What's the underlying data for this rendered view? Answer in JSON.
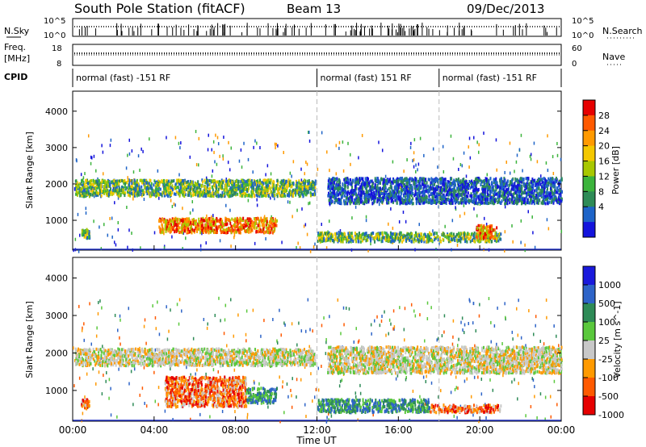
{
  "header": {
    "station": "South Pole Station (fitACF)",
    "beam": "Beam 13",
    "date": "09/Dec/2013"
  },
  "strip_labels": {
    "nsky": "N.Sky",
    "nsearch": "N.Search",
    "freq": "Freq.",
    "freq_unit": "[MHz]",
    "nave": "Nave",
    "cpid": "CPID",
    "nsky_ticks": [
      "10^5",
      "10^0"
    ],
    "nsearch_ticks": [
      "10^5",
      "10^0"
    ],
    "freq_ticks": [
      "18",
      "8"
    ],
    "nave_ticks": [
      "60",
      "0"
    ]
  },
  "cpid_segments": [
    {
      "label": "normal (fast) -151 RF",
      "start_hour": 0,
      "end_hour": 12
    },
    {
      "label": "normal (fast) 151 RF",
      "start_hour": 12,
      "end_hour": 18
    },
    {
      "label": "normal (fast) -151 RF",
      "start_hour": 18,
      "end_hour": 24
    }
  ],
  "chart_data": [
    {
      "type": "heatmap",
      "name": "power",
      "ylabel": "Slant Range [km]",
      "ylim": [
        180,
        4550
      ],
      "y_ticks": [
        1000,
        2000,
        3000,
        4000
      ],
      "x_range_hours": [
        0,
        24
      ],
      "colorbar": {
        "label": "Power [dB]",
        "ticks": [
          "28",
          "24",
          "20",
          "16",
          "12",
          "8",
          "4"
        ],
        "colors": [
          "#e60000",
          "#ff5a00",
          "#ff9a00",
          "#f4c800",
          "#a8c800",
          "#3cb43c",
          "#2e8b57",
          "#1e64c8",
          "#1414dc"
        ]
      },
      "regions": [
        {
          "from_hour": 0.1,
          "to_hour": 11.9,
          "range_km": [
            1700,
            2150
          ],
          "level": "moderate"
        },
        {
          "from_hour": 4.2,
          "to_hour": 10.0,
          "range_km": [
            700,
            1100
          ],
          "level": "strong"
        },
        {
          "from_hour": 0.4,
          "to_hour": 0.8,
          "range_km": [
            550,
            800
          ],
          "level": "moderate"
        },
        {
          "from_hour": 12.0,
          "to_hour": 21.0,
          "range_km": [
            450,
            700
          ],
          "level": "moderate"
        },
        {
          "from_hour": 19.8,
          "to_hour": 20.8,
          "range_km": [
            550,
            900
          ],
          "level": "strong"
        },
        {
          "from_hour": 12.5,
          "to_hour": 24.0,
          "range_km": [
            1500,
            2200
          ],
          "level": "weak"
        }
      ]
    },
    {
      "type": "heatmap",
      "name": "velocity",
      "ylabel": "Slant Range [km]",
      "ylim": [
        180,
        4550
      ],
      "y_ticks": [
        1000,
        2000,
        3000,
        4000
      ],
      "x_range_hours": [
        0,
        24
      ],
      "colorbar": {
        "label": "Velocity [m s^-1]",
        "ticks": [
          "1000",
          "500",
          "100",
          "25",
          "-25",
          "-100",
          "-500",
          "-1000"
        ],
        "colors": [
          "#1a1adc",
          "#2e64c8",
          "#2e8b57",
          "#5ac83c",
          "#c8c8c8",
          "#ff9a00",
          "#ff5a00",
          "#e60000"
        ]
      },
      "regions": [
        {
          "from_hour": 0.1,
          "to_hour": 11.9,
          "range_km": [
            1700,
            2150
          ],
          "level": "near-zero"
        },
        {
          "from_hour": 4.5,
          "to_hour": 8.5,
          "range_km": [
            600,
            1400
          ],
          "level": "negative"
        },
        {
          "from_hour": 8.5,
          "to_hour": 10.0,
          "range_km": [
            700,
            1100
          ],
          "level": "positive"
        },
        {
          "from_hour": 0.4,
          "to_hour": 0.8,
          "range_km": [
            550,
            800
          ],
          "level": "negative"
        },
        {
          "from_hour": 12.0,
          "to_hour": 17.5,
          "range_km": [
            450,
            800
          ],
          "level": "positive"
        },
        {
          "from_hour": 17.5,
          "to_hour": 21.0,
          "range_km": [
            450,
            650
          ],
          "level": "negative"
        },
        {
          "from_hour": 12.5,
          "to_hour": 24.0,
          "range_km": [
            1500,
            2200
          ],
          "level": "near-zero"
        }
      ]
    }
  ],
  "x_axis": {
    "ticks": [
      "00:00",
      "04:00",
      "08:00",
      "12:00",
      "16:00",
      "20:00",
      "00:00"
    ],
    "label": "Time UT"
  }
}
